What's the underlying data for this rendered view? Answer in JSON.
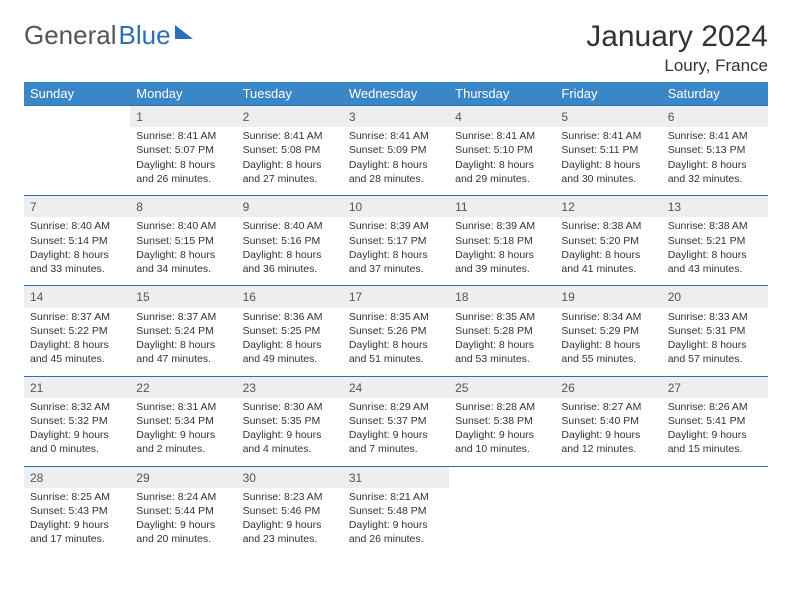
{
  "brand": {
    "part1": "General",
    "part2": "Blue"
  },
  "title": "January 2024",
  "location": "Loury, France",
  "colors": {
    "header_bg": "#3a87c7",
    "accent": "#2d6fb5",
    "daynum_bg": "#eceef0",
    "text": "#333333"
  },
  "weekdays": [
    "Sunday",
    "Monday",
    "Tuesday",
    "Wednesday",
    "Thursday",
    "Friday",
    "Saturday"
  ],
  "weeks": [
    {
      "nums": [
        "",
        "1",
        "2",
        "3",
        "4",
        "5",
        "6"
      ],
      "cells": [
        null,
        {
          "sunrise": "Sunrise: 8:41 AM",
          "sunset": "Sunset: 5:07 PM",
          "d1": "Daylight: 8 hours",
          "d2": "and 26 minutes."
        },
        {
          "sunrise": "Sunrise: 8:41 AM",
          "sunset": "Sunset: 5:08 PM",
          "d1": "Daylight: 8 hours",
          "d2": "and 27 minutes."
        },
        {
          "sunrise": "Sunrise: 8:41 AM",
          "sunset": "Sunset: 5:09 PM",
          "d1": "Daylight: 8 hours",
          "d2": "and 28 minutes."
        },
        {
          "sunrise": "Sunrise: 8:41 AM",
          "sunset": "Sunset: 5:10 PM",
          "d1": "Daylight: 8 hours",
          "d2": "and 29 minutes."
        },
        {
          "sunrise": "Sunrise: 8:41 AM",
          "sunset": "Sunset: 5:11 PM",
          "d1": "Daylight: 8 hours",
          "d2": "and 30 minutes."
        },
        {
          "sunrise": "Sunrise: 8:41 AM",
          "sunset": "Sunset: 5:13 PM",
          "d1": "Daylight: 8 hours",
          "d2": "and 32 minutes."
        }
      ]
    },
    {
      "nums": [
        "7",
        "8",
        "9",
        "10",
        "11",
        "12",
        "13"
      ],
      "cells": [
        {
          "sunrise": "Sunrise: 8:40 AM",
          "sunset": "Sunset: 5:14 PM",
          "d1": "Daylight: 8 hours",
          "d2": "and 33 minutes."
        },
        {
          "sunrise": "Sunrise: 8:40 AM",
          "sunset": "Sunset: 5:15 PM",
          "d1": "Daylight: 8 hours",
          "d2": "and 34 minutes."
        },
        {
          "sunrise": "Sunrise: 8:40 AM",
          "sunset": "Sunset: 5:16 PM",
          "d1": "Daylight: 8 hours",
          "d2": "and 36 minutes."
        },
        {
          "sunrise": "Sunrise: 8:39 AM",
          "sunset": "Sunset: 5:17 PM",
          "d1": "Daylight: 8 hours",
          "d2": "and 37 minutes."
        },
        {
          "sunrise": "Sunrise: 8:39 AM",
          "sunset": "Sunset: 5:18 PM",
          "d1": "Daylight: 8 hours",
          "d2": "and 39 minutes."
        },
        {
          "sunrise": "Sunrise: 8:38 AM",
          "sunset": "Sunset: 5:20 PM",
          "d1": "Daylight: 8 hours",
          "d2": "and 41 minutes."
        },
        {
          "sunrise": "Sunrise: 8:38 AM",
          "sunset": "Sunset: 5:21 PM",
          "d1": "Daylight: 8 hours",
          "d2": "and 43 minutes."
        }
      ]
    },
    {
      "nums": [
        "14",
        "15",
        "16",
        "17",
        "18",
        "19",
        "20"
      ],
      "cells": [
        {
          "sunrise": "Sunrise: 8:37 AM",
          "sunset": "Sunset: 5:22 PM",
          "d1": "Daylight: 8 hours",
          "d2": "and 45 minutes."
        },
        {
          "sunrise": "Sunrise: 8:37 AM",
          "sunset": "Sunset: 5:24 PM",
          "d1": "Daylight: 8 hours",
          "d2": "and 47 minutes."
        },
        {
          "sunrise": "Sunrise: 8:36 AM",
          "sunset": "Sunset: 5:25 PM",
          "d1": "Daylight: 8 hours",
          "d2": "and 49 minutes."
        },
        {
          "sunrise": "Sunrise: 8:35 AM",
          "sunset": "Sunset: 5:26 PM",
          "d1": "Daylight: 8 hours",
          "d2": "and 51 minutes."
        },
        {
          "sunrise": "Sunrise: 8:35 AM",
          "sunset": "Sunset: 5:28 PM",
          "d1": "Daylight: 8 hours",
          "d2": "and 53 minutes."
        },
        {
          "sunrise": "Sunrise: 8:34 AM",
          "sunset": "Sunset: 5:29 PM",
          "d1": "Daylight: 8 hours",
          "d2": "and 55 minutes."
        },
        {
          "sunrise": "Sunrise: 8:33 AM",
          "sunset": "Sunset: 5:31 PM",
          "d1": "Daylight: 8 hours",
          "d2": "and 57 minutes."
        }
      ]
    },
    {
      "nums": [
        "21",
        "22",
        "23",
        "24",
        "25",
        "26",
        "27"
      ],
      "cells": [
        {
          "sunrise": "Sunrise: 8:32 AM",
          "sunset": "Sunset: 5:32 PM",
          "d1": "Daylight: 9 hours",
          "d2": "and 0 minutes."
        },
        {
          "sunrise": "Sunrise: 8:31 AM",
          "sunset": "Sunset: 5:34 PM",
          "d1": "Daylight: 9 hours",
          "d2": "and 2 minutes."
        },
        {
          "sunrise": "Sunrise: 8:30 AM",
          "sunset": "Sunset: 5:35 PM",
          "d1": "Daylight: 9 hours",
          "d2": "and 4 minutes."
        },
        {
          "sunrise": "Sunrise: 8:29 AM",
          "sunset": "Sunset: 5:37 PM",
          "d1": "Daylight: 9 hours",
          "d2": "and 7 minutes."
        },
        {
          "sunrise": "Sunrise: 8:28 AM",
          "sunset": "Sunset: 5:38 PM",
          "d1": "Daylight: 9 hours",
          "d2": "and 10 minutes."
        },
        {
          "sunrise": "Sunrise: 8:27 AM",
          "sunset": "Sunset: 5:40 PM",
          "d1": "Daylight: 9 hours",
          "d2": "and 12 minutes."
        },
        {
          "sunrise": "Sunrise: 8:26 AM",
          "sunset": "Sunset: 5:41 PM",
          "d1": "Daylight: 9 hours",
          "d2": "and 15 minutes."
        }
      ]
    },
    {
      "nums": [
        "28",
        "29",
        "30",
        "31",
        "",
        "",
        ""
      ],
      "cells": [
        {
          "sunrise": "Sunrise: 8:25 AM",
          "sunset": "Sunset: 5:43 PM",
          "d1": "Daylight: 9 hours",
          "d2": "and 17 minutes."
        },
        {
          "sunrise": "Sunrise: 8:24 AM",
          "sunset": "Sunset: 5:44 PM",
          "d1": "Daylight: 9 hours",
          "d2": "and 20 minutes."
        },
        {
          "sunrise": "Sunrise: 8:23 AM",
          "sunset": "Sunset: 5:46 PM",
          "d1": "Daylight: 9 hours",
          "d2": "and 23 minutes."
        },
        {
          "sunrise": "Sunrise: 8:21 AM",
          "sunset": "Sunset: 5:48 PM",
          "d1": "Daylight: 9 hours",
          "d2": "and 26 minutes."
        },
        null,
        null,
        null
      ]
    }
  ]
}
